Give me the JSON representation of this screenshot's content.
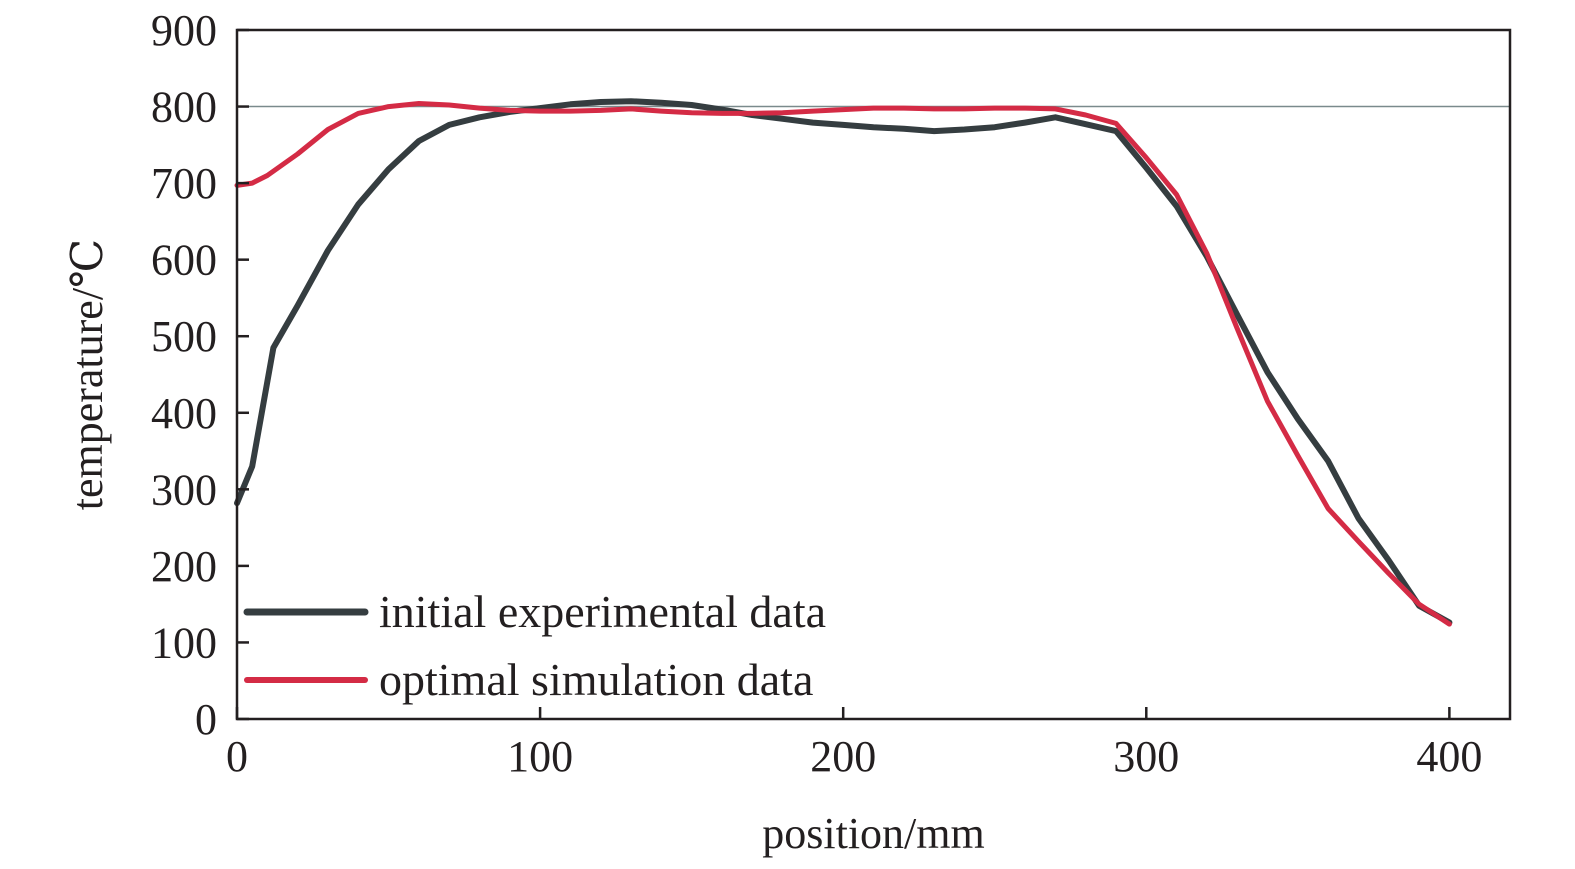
{
  "chart_data": {
    "type": "line",
    "xlabel": "position/mm",
    "ylabel": "temperature/℃",
    "xlim": [
      0,
      420
    ],
    "ylim": [
      0,
      900
    ],
    "xticks": [
      0,
      100,
      200,
      300,
      400
    ],
    "yticks": [
      0,
      100,
      200,
      300,
      400,
      500,
      600,
      700,
      800,
      900
    ],
    "reference_line": {
      "y": 800,
      "color": "#7a8a8c"
    },
    "grid": false,
    "legend_position": "bottom-left",
    "series": [
      {
        "name": "initial experimental data",
        "color": "#353d40",
        "x": [
          0,
          5,
          12,
          20,
          30,
          40,
          50,
          60,
          70,
          80,
          90,
          100,
          110,
          120,
          130,
          140,
          150,
          160,
          170,
          180,
          190,
          200,
          210,
          220,
          230,
          240,
          250,
          260,
          270,
          280,
          290,
          300,
          310,
          320,
          330,
          340,
          350,
          360,
          370,
          380,
          390,
          400
        ],
        "y": [
          282,
          330,
          485,
          540,
          612,
          672,
          718,
          755,
          776,
          786,
          793,
          798,
          803,
          806,
          807,
          805,
          802,
          796,
          789,
          784,
          779,
          776,
          773,
          771,
          768,
          770,
          773,
          779,
          786,
          777,
          768,
          720,
          670,
          604,
          528,
          453,
          392,
          337,
          262,
          207,
          148,
          126
        ],
        "line_width": 6
      },
      {
        "name": "optimal simulation data",
        "color": "#d42b45",
        "x": [
          0,
          5,
          10,
          20,
          30,
          40,
          50,
          60,
          70,
          80,
          90,
          100,
          110,
          120,
          130,
          140,
          150,
          160,
          170,
          180,
          190,
          200,
          210,
          220,
          230,
          240,
          250,
          260,
          270,
          280,
          290,
          300,
          310,
          320,
          330,
          340,
          350,
          360,
          370,
          380,
          390,
          400
        ],
        "y": [
          697,
          700,
          710,
          738,
          770,
          791,
          800,
          804,
          802,
          798,
          795,
          794,
          794,
          795,
          797,
          794,
          792,
          791,
          791,
          792,
          794,
          796,
          798,
          798,
          797,
          797,
          798,
          798,
          797,
          789,
          778,
          733,
          685,
          608,
          510,
          415,
          344,
          275,
          232,
          190,
          150,
          124
        ],
        "line_width": 5
      }
    ]
  }
}
